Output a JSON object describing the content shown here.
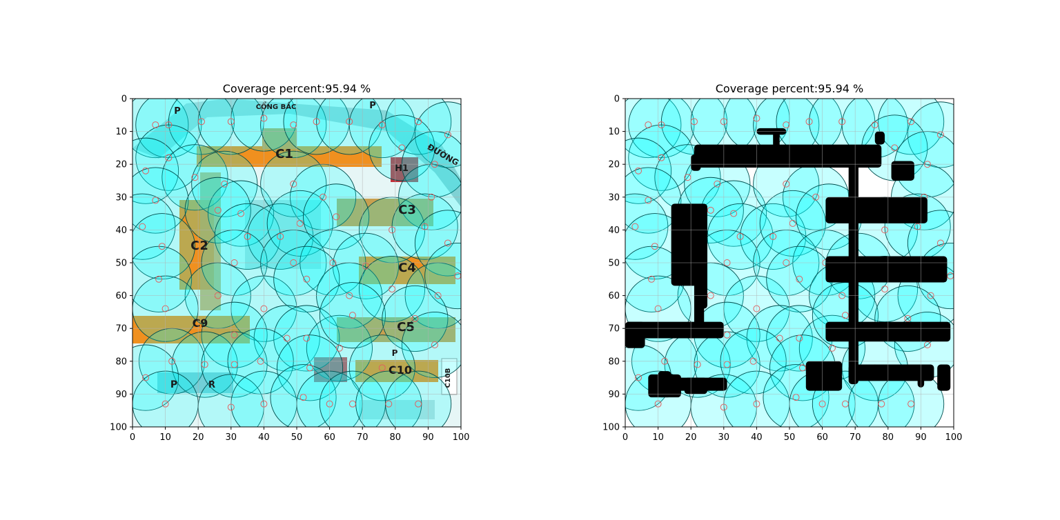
{
  "figure": {
    "colors": {
      "sensor_fill": "#00ffff",
      "sensor_edge": "#004d4d",
      "sensor_center": "#e06060",
      "obstacle": "#000000",
      "grid": "#b0b0b0",
      "free_area": "#e6ffff"
    }
  },
  "map_labels": [
    "P",
    "CỔNG BẮC",
    "P",
    "C1",
    "H1",
    "ĐƯỜNG",
    "C2",
    "C3",
    "C4",
    "C9",
    "C5",
    "P",
    "C10",
    "P",
    "R",
    "C10B"
  ],
  "chart_data": [
    {
      "type": "scatter",
      "title": "Coverage percent:95.94 %",
      "background": "campus-map",
      "xlim": [
        0,
        100
      ],
      "ylim": [
        100,
        0
      ],
      "xticks": [
        "0",
        "10",
        "20",
        "30",
        "40",
        "50",
        "60",
        "70",
        "80",
        "90",
        "100"
      ],
      "yticks": [
        "0",
        "10",
        "20",
        "30",
        "40",
        "50",
        "60",
        "70",
        "80",
        "90",
        "100"
      ],
      "grid": true,
      "sensor_radius": 10,
      "coverage_percent": 95.94
    },
    {
      "type": "scatter",
      "title": "Coverage percent:95.94 %",
      "background": "obstacle-map",
      "xlim": [
        0,
        100
      ],
      "ylim": [
        100,
        0
      ],
      "xticks": [
        "0",
        "10",
        "20",
        "30",
        "40",
        "50",
        "60",
        "70",
        "80",
        "90",
        "100"
      ],
      "yticks": [
        "0",
        "10",
        "20",
        "30",
        "40",
        "50",
        "60",
        "70",
        "80",
        "90",
        "100"
      ],
      "grid": true,
      "sensor_radius": 10,
      "coverage_percent": 95.94
    }
  ],
  "sensors": [
    [
      7,
      8
    ],
    [
      11,
      8
    ],
    [
      21,
      7
    ],
    [
      30,
      7
    ],
    [
      40,
      6
    ],
    [
      49,
      8
    ],
    [
      56,
      7
    ],
    [
      66,
      7
    ],
    [
      76,
      8
    ],
    [
      87,
      7
    ],
    [
      96,
      11
    ],
    [
      11,
      18
    ],
    [
      4,
      22
    ],
    [
      19,
      24
    ],
    [
      28,
      26
    ],
    [
      33,
      35
    ],
    [
      49,
      26
    ],
    [
      58,
      30
    ],
    [
      82,
      15
    ],
    [
      92,
      20
    ],
    [
      91,
      30
    ],
    [
      7,
      31
    ],
    [
      3,
      39
    ],
    [
      9,
      45
    ],
    [
      26,
      34
    ],
    [
      35,
      42
    ],
    [
      45,
      42
    ],
    [
      51,
      38
    ],
    [
      62,
      36
    ],
    [
      79,
      40
    ],
    [
      89,
      39
    ],
    [
      96,
      44
    ],
    [
      31,
      50
    ],
    [
      49,
      50
    ],
    [
      61,
      50
    ],
    [
      71,
      51
    ],
    [
      8,
      55
    ],
    [
      26,
      60
    ],
    [
      40,
      64
    ],
    [
      53,
      55
    ],
    [
      66,
      60
    ],
    [
      79,
      58
    ],
    [
      93,
      60
    ],
    [
      99,
      54
    ],
    [
      10,
      64
    ],
    [
      31,
      72
    ],
    [
      47,
      73
    ],
    [
      53,
      73
    ],
    [
      63,
      76
    ],
    [
      67,
      66
    ],
    [
      86,
      67
    ],
    [
      92,
      75
    ],
    [
      12,
      80
    ],
    [
      22,
      81
    ],
    [
      31,
      81
    ],
    [
      39,
      80
    ],
    [
      54,
      82
    ],
    [
      76,
      82
    ],
    [
      4,
      85
    ],
    [
      10,
      93
    ],
    [
      30,
      94
    ],
    [
      40,
      93
    ],
    [
      52,
      91
    ],
    [
      60,
      93
    ],
    [
      67,
      93
    ],
    [
      78,
      93
    ],
    [
      87,
      93
    ]
  ],
  "obstacles": [
    {
      "x1": 40,
      "y1": 9,
      "x2": 49,
      "y2": 11
    },
    {
      "x1": 45,
      "y1": 9,
      "x2": 47,
      "y2": 15
    },
    {
      "x1": 21,
      "y1": 14,
      "x2": 78,
      "y2": 21
    },
    {
      "x1": 20,
      "y1": 17,
      "x2": 23,
      "y2": 22
    },
    {
      "x1": 76,
      "y1": 10,
      "x2": 79,
      "y2": 14
    },
    {
      "x1": 40,
      "y1": 18,
      "x2": 46,
      "y2": 21
    },
    {
      "x1": 63,
      "y1": 18,
      "x2": 69,
      "y2": 21
    },
    {
      "x1": 81,
      "y1": 19,
      "x2": 88,
      "y2": 25
    },
    {
      "x1": 68,
      "y1": 18,
      "x2": 71,
      "y2": 87
    },
    {
      "x1": 14,
      "y1": 32,
      "x2": 25,
      "y2": 57
    },
    {
      "x1": 22,
      "y1": 40,
      "x2": 25,
      "y2": 64
    },
    {
      "x1": 21,
      "y1": 55,
      "x2": 24,
      "y2": 73
    },
    {
      "x1": 61,
      "y1": 30,
      "x2": 92,
      "y2": 38
    },
    {
      "x1": 61,
      "y1": 48,
      "x2": 98,
      "y2": 56
    },
    {
      "x1": 0,
      "y1": 68,
      "x2": 30,
      "y2": 73
    },
    {
      "x1": 0,
      "y1": 68,
      "x2": 6,
      "y2": 76
    },
    {
      "x1": 61,
      "y1": 68,
      "x2": 99,
      "y2": 74
    },
    {
      "x1": 55,
      "y1": 80,
      "x2": 66,
      "y2": 89
    },
    {
      "x1": 68,
      "y1": 81,
      "x2": 94,
      "y2": 86
    },
    {
      "x1": 89,
      "y1": 81,
      "x2": 91,
      "y2": 88
    },
    {
      "x1": 95,
      "y1": 81,
      "x2": 99,
      "y2": 89
    },
    {
      "x1": 7,
      "y1": 84,
      "x2": 17,
      "y2": 91
    },
    {
      "x1": 10,
      "y1": 83,
      "x2": 14,
      "y2": 91
    },
    {
      "x1": 15,
      "y1": 85,
      "x2": 31,
      "y2": 89
    },
    {
      "x1": 18,
      "y1": 85,
      "x2": 25,
      "y2": 90
    }
  ]
}
